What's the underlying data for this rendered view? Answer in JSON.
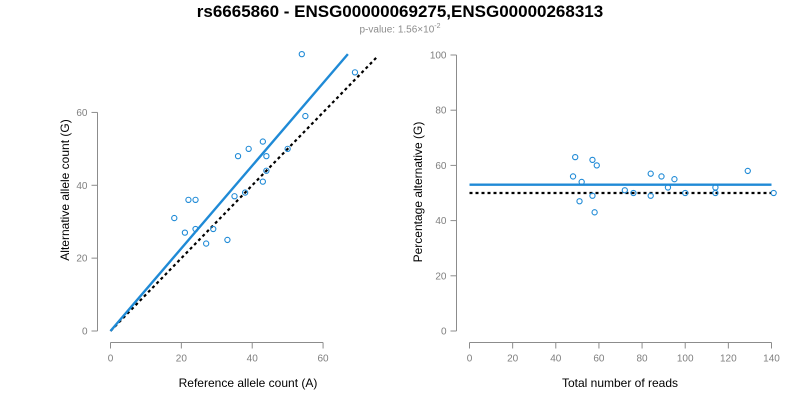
{
  "title": "rs6665860 - ENSG00000069275,ENSG00000268313",
  "subtitle": {
    "prefix": "p-value: 1.56×10",
    "exponent": "-2"
  },
  "colors": {
    "points": "#1f8ad6",
    "fit": "#1f8ad6",
    "reference": "#000000",
    "axis": "#8c8c8c"
  },
  "chart_data": [
    {
      "type": "scatter",
      "xlabel": "Reference allele count (A)",
      "ylabel": "Alternative allele count (G)",
      "xlim": [
        0,
        70
      ],
      "ylim": [
        0,
        70
      ],
      "xticks": [
        0,
        20,
        40,
        60
      ],
      "yticks": [
        0,
        20,
        40,
        60
      ],
      "points": [
        {
          "x": 54,
          "y": 76
        },
        {
          "x": 55,
          "y": 59
        },
        {
          "x": 69,
          "y": 71
        },
        {
          "x": 43,
          "y": 52
        },
        {
          "x": 39,
          "y": 50
        },
        {
          "x": 44,
          "y": 48
        },
        {
          "x": 36,
          "y": 48
        },
        {
          "x": 50,
          "y": 50
        },
        {
          "x": 44,
          "y": 44
        },
        {
          "x": 43,
          "y": 41
        },
        {
          "x": 38,
          "y": 38
        },
        {
          "x": 35,
          "y": 37
        },
        {
          "x": 22,
          "y": 36
        },
        {
          "x": 24,
          "y": 36
        },
        {
          "x": 18,
          "y": 31
        },
        {
          "x": 24,
          "y": 28
        },
        {
          "x": 29,
          "y": 28
        },
        {
          "x": 21,
          "y": 27
        },
        {
          "x": 33,
          "y": 25
        },
        {
          "x": 27,
          "y": 24
        }
      ],
      "fit_line": {
        "x": [
          0,
          67
        ],
        "y": [
          0,
          76
        ]
      },
      "reference_line": {
        "x": [
          0,
          75
        ],
        "y": [
          0,
          75
        ]
      }
    },
    {
      "type": "scatter",
      "xlabel": "Total number of reads",
      "ylabel": "Percentage alternative (G)",
      "xlim": [
        0,
        140
      ],
      "ylim": [
        0,
        100
      ],
      "xticks": [
        0,
        20,
        40,
        60,
        80,
        100,
        120,
        140
      ],
      "yticks": [
        0,
        20,
        40,
        60,
        80,
        100
      ],
      "points": [
        {
          "x": 49,
          "y": 63
        },
        {
          "x": 57,
          "y": 62
        },
        {
          "x": 59,
          "y": 60
        },
        {
          "x": 48,
          "y": 56
        },
        {
          "x": 84,
          "y": 57
        },
        {
          "x": 89,
          "y": 56
        },
        {
          "x": 95,
          "y": 55
        },
        {
          "x": 52,
          "y": 54
        },
        {
          "x": 92,
          "y": 52
        },
        {
          "x": 72,
          "y": 51
        },
        {
          "x": 114,
          "y": 52
        },
        {
          "x": 129,
          "y": 58
        },
        {
          "x": 100,
          "y": 50
        },
        {
          "x": 76,
          "y": 50
        },
        {
          "x": 141,
          "y": 50
        },
        {
          "x": 114,
          "y": 50
        },
        {
          "x": 57,
          "y": 49
        },
        {
          "x": 84,
          "y": 49
        },
        {
          "x": 51,
          "y": 47
        },
        {
          "x": 58,
          "y": 43
        }
      ],
      "fit_line": {
        "x": [
          0,
          140
        ],
        "y": [
          53,
          53
        ]
      },
      "reference_line": {
        "x": [
          0,
          140
        ],
        "y": [
          50,
          50
        ]
      }
    }
  ]
}
